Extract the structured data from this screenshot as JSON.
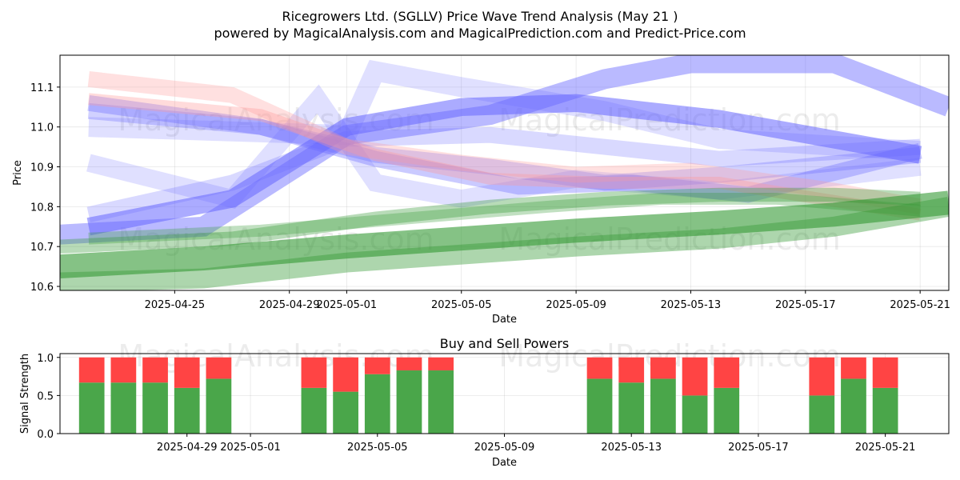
{
  "title_line1": "Ricegrowers Ltd. (SGLLV) Price Wave Trend Analysis (May 21 )",
  "title_line2": "powered by MagicalAnalysis.com and MagicalPrediction.com and Predict-Price.com",
  "watermarks": [
    "MagicalAnalysis.com",
    "MagicalPrediction.com"
  ],
  "colors": {
    "blue": "#6666ff",
    "red": "#ff9999",
    "green": "#339933",
    "buy": "#4aa64a",
    "sell": "#ff4444"
  },
  "chart_data": [
    {
      "type": "line",
      "title": "",
      "xlabel": "Date",
      "ylabel": "Price",
      "ylim": [
        10.59,
        11.18
      ],
      "xlim": [
        "2025-04-21",
        "2025-05-22"
      ],
      "xticks": [
        "2025-04-25",
        "2025-04-29",
        "2025-05-01",
        "2025-05-05",
        "2025-05-09",
        "2025-05-13",
        "2025-05-17",
        "2025-05-21"
      ],
      "yticks": [
        "10.6",
        "10.7",
        "10.8",
        "10.9",
        "11.0",
        "11.1"
      ],
      "grid": true,
      "series": [
        {
          "name": "blue wave 1",
          "color": "blue",
          "opacity": 0.45,
          "width": 0.05,
          "x": [
            "2025-04-21",
            "2025-04-26",
            "2025-05-01",
            "2025-05-06",
            "2025-05-10",
            "2025-05-13",
            "2025-05-18",
            "2025-05-22"
          ],
          "y": [
            10.73,
            10.75,
            10.98,
            11.03,
            11.12,
            11.16,
            11.16,
            11.05
          ]
        },
        {
          "name": "blue wave 2",
          "color": "blue",
          "opacity": 0.55,
          "width": 0.045,
          "x": [
            "2025-04-22",
            "2025-04-27",
            "2025-05-01",
            "2025-05-05",
            "2025-05-09",
            "2025-05-14",
            "2025-05-21"
          ],
          "y": [
            10.75,
            10.82,
            11.0,
            11.05,
            11.06,
            11.02,
            10.93
          ]
        },
        {
          "name": "blue wave 3",
          "color": "blue",
          "opacity": 0.3,
          "width": 0.04,
          "x": [
            "2025-04-22",
            "2025-04-28",
            "2025-05-02",
            "2025-05-06",
            "2025-05-10",
            "2025-05-14",
            "2025-05-21"
          ],
          "y": [
            11.04,
            11.0,
            10.93,
            10.9,
            10.86,
            10.88,
            10.93
          ]
        },
        {
          "name": "blue wave 4",
          "color": "blue",
          "opacity": 0.25,
          "width": 0.04,
          "x": [
            "2025-04-22",
            "2025-04-27",
            "2025-05-01",
            "2025-05-06",
            "2025-05-10",
            "2025-05-14",
            "2025-05-21"
          ],
          "y": [
            10.78,
            10.86,
            10.97,
            10.98,
            10.95,
            10.92,
            10.95
          ]
        },
        {
          "name": "blue wave 5",
          "color": "blue",
          "opacity": 0.2,
          "width": 0.045,
          "x": [
            "2025-04-22",
            "2025-04-27",
            "2025-04-30",
            "2025-05-02",
            "2025-05-05",
            "2025-05-09",
            "2025-05-14",
            "2025-05-21"
          ],
          "y": [
            10.91,
            10.82,
            11.07,
            10.86,
            10.82,
            10.87,
            10.84,
            10.9
          ]
        },
        {
          "name": "blue wave 6",
          "color": "blue",
          "opacity": 0.2,
          "width": 0.05,
          "x": [
            "2025-04-22",
            "2025-05-01",
            "2025-05-02",
            "2025-05-05",
            "2025-05-10",
            "2025-05-14",
            "2025-05-21"
          ],
          "y": [
            11.0,
            10.98,
            11.14,
            11.1,
            11.04,
            10.97,
            10.94
          ]
        },
        {
          "name": "blue wave 7",
          "color": "blue",
          "opacity": 0.35,
          "width": 0.04,
          "x": [
            "2025-04-22",
            "2025-04-28",
            "2025-05-02",
            "2025-05-07",
            "2025-05-11",
            "2025-05-15",
            "2025-05-21"
          ],
          "y": [
            11.06,
            11.0,
            10.92,
            10.85,
            10.86,
            10.83,
            10.94
          ]
        },
        {
          "name": "red wave 1",
          "color": "red",
          "opacity": 0.3,
          "width": 0.04,
          "x": [
            "2025-04-22",
            "2025-04-27",
            "2025-05-01",
            "2025-05-05",
            "2025-05-09",
            "2025-05-13",
            "2025-05-18",
            "2025-05-21"
          ],
          "y": [
            11.12,
            11.08,
            10.95,
            10.91,
            10.88,
            10.89,
            10.84,
            10.8
          ]
        },
        {
          "name": "red wave 2",
          "color": "red",
          "opacity": 0.35,
          "width": 0.03,
          "x": [
            "2025-04-22",
            "2025-04-28",
            "2025-05-02",
            "2025-05-06",
            "2025-05-10",
            "2025-05-14",
            "2025-05-21"
          ],
          "y": [
            11.07,
            11.03,
            10.93,
            10.87,
            10.86,
            10.86,
            10.78
          ]
        },
        {
          "name": "green wave 1",
          "color": "green",
          "opacity": 0.6,
          "width": 0.06,
          "x": [
            "2025-04-21",
            "2025-04-26",
            "2025-05-01",
            "2025-05-05",
            "2025-05-09",
            "2025-05-14",
            "2025-05-18",
            "2025-05-22"
          ],
          "y": [
            10.65,
            10.67,
            10.7,
            10.72,
            10.74,
            10.76,
            10.78,
            10.81
          ]
        },
        {
          "name": "green wave 2",
          "color": "green",
          "opacity": 0.4,
          "width": 0.05,
          "x": [
            "2025-04-21",
            "2025-04-26",
            "2025-05-01",
            "2025-05-05",
            "2025-05-09",
            "2025-05-14",
            "2025-05-18",
            "2025-05-22"
          ],
          "y": [
            10.61,
            10.62,
            10.66,
            10.68,
            10.7,
            10.72,
            10.75,
            10.8
          ]
        },
        {
          "name": "green wave 3",
          "color": "green",
          "opacity": 0.35,
          "width": 0.035,
          "x": [
            "2025-04-21",
            "2025-04-27",
            "2025-05-02",
            "2025-05-06",
            "2025-05-10",
            "2025-05-14",
            "2025-05-18",
            "2025-05-21"
          ],
          "y": [
            10.7,
            10.72,
            10.77,
            10.8,
            10.82,
            10.83,
            10.83,
            10.82
          ]
        },
        {
          "name": "green wave 4",
          "color": "green",
          "opacity": 0.3,
          "width": 0.03,
          "x": [
            "2025-04-22",
            "2025-04-28",
            "2025-05-03",
            "2025-05-08",
            "2025-05-12",
            "2025-05-16",
            "2025-05-21"
          ],
          "y": [
            10.72,
            10.74,
            10.77,
            10.8,
            10.82,
            10.82,
            10.79
          ]
        }
      ]
    },
    {
      "type": "bar",
      "title": "Buy and Sell Powers",
      "xlabel": "Date",
      "ylabel": "Signal Strength",
      "ylim": [
        0,
        1.05
      ],
      "yticks": [
        "0.0",
        "0.5",
        "1.0"
      ],
      "xticks": [
        "2025-04-29",
        "2025-05-01",
        "2025-05-05",
        "2025-05-09",
        "2025-05-13",
        "2025-05-17",
        "2025-05-21"
      ],
      "xlim": [
        "2025-04-25",
        "2025-05-23"
      ],
      "dates": [
        "2025-04-26",
        "2025-04-27",
        "2025-04-28",
        "2025-04-29",
        "2025-04-30",
        "2025-05-03",
        "2025-05-04",
        "2025-05-05",
        "2025-05-06",
        "2025-05-07",
        "2025-05-12",
        "2025-05-13",
        "2025-05-14",
        "2025-05-15",
        "2025-05-16",
        "2025-05-19",
        "2025-05-20",
        "2025-05-21"
      ],
      "series": [
        {
          "name": "Buy",
          "color": "buy",
          "values": [
            0.67,
            0.67,
            0.67,
            0.6,
            0.72,
            0.6,
            0.55,
            0.78,
            0.83,
            0.83,
            0.72,
            0.67,
            0.72,
            0.5,
            0.6,
            0.5,
            0.72,
            0.6
          ]
        },
        {
          "name": "Sell",
          "color": "sell",
          "values": [
            0.33,
            0.33,
            0.33,
            0.4,
            0.28,
            0.4,
            0.45,
            0.22,
            0.17,
            0.17,
            0.28,
            0.33,
            0.28,
            0.5,
            0.4,
            0.5,
            0.28,
            0.4
          ]
        }
      ]
    }
  ]
}
